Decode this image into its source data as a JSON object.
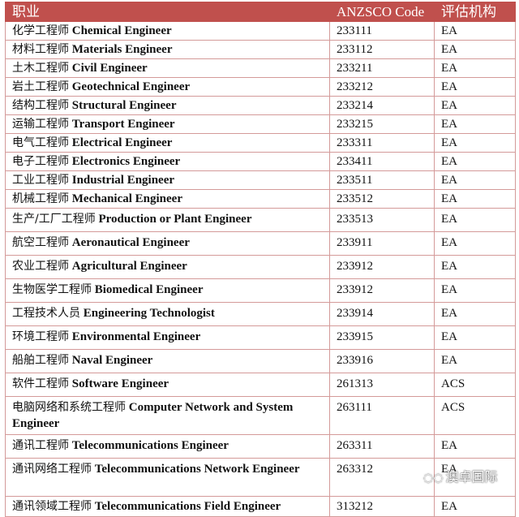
{
  "header": {
    "job": "职业",
    "code": "ANZSCO Code",
    "org": "评估机构"
  },
  "rows": [
    {
      "zh": "化学工程师",
      "en": "Chemical Engineer",
      "code": "233111",
      "org": "EA"
    },
    {
      "zh": "材料工程师",
      "en": "Materials Engineer",
      "code": "233112",
      "org": "EA"
    },
    {
      "zh": "土木工程师",
      "en": "Civil Engineer",
      "code": "233211",
      "org": "EA"
    },
    {
      "zh": "岩土工程师",
      "en": "Geotechnical Engineer",
      "code": "233212",
      "org": "EA"
    },
    {
      "zh": "结构工程师",
      "en": "Structural Engineer",
      "code": "233214",
      "org": "EA"
    },
    {
      "zh": "运输工程师",
      "en": "Transport Engineer",
      "code": "233215",
      "org": "EA"
    },
    {
      "zh": "电气工程师",
      "en": "Electrical Engineer",
      "code": "233311",
      "org": "EA"
    },
    {
      "zh": "电子工程师",
      "en": "Electronics Engineer",
      "code": "233411",
      "org": "EA"
    },
    {
      "zh": "工业工程师",
      "en": "Industrial Engineer",
      "code": "233511",
      "org": "EA"
    },
    {
      "zh": "机械工程师",
      "en": "Mechanical Engineer",
      "code": "233512",
      "org": "EA"
    },
    {
      "zh": "生产/工厂工程师",
      "en": "Production or Plant Engineer",
      "code": "233513",
      "org": "EA"
    },
    {
      "zh": "航空工程师",
      "en": "Aeronautical Engineer",
      "code": "233911",
      "org": "EA"
    },
    {
      "zh": "农业工程师",
      "en": "Agricultural Engineer",
      "code": "233912",
      "org": "EA"
    },
    {
      "zh": "生物医学工程师",
      "en": "Biomedical Engineer",
      "code": "233912",
      "org": "EA"
    },
    {
      "zh": "工程技术人员",
      "en": "Engineering Technologist",
      "code": "233914",
      "org": "EA"
    },
    {
      "zh": "环境工程师",
      "en": "Environmental Engineer",
      "code": "233915",
      "org": "EA"
    },
    {
      "zh": "船舶工程师",
      "en": "Naval Engineer",
      "code": "233916",
      "org": "EA"
    },
    {
      "zh": "软件工程师",
      "en": "Software Engineer",
      "code": "261313",
      "org": "ACS"
    },
    {
      "zh": "电脑网络和系统工程师",
      "en": "Computer Network and System Engineer",
      "code": "263111",
      "org": "ACS"
    },
    {
      "zh": "通讯工程师",
      "en": "Telecommunications Engineer",
      "code": "263311",
      "org": "EA"
    },
    {
      "zh": "通讯网络工程师",
      "en": "Telecommunications Network Engineer",
      "code": "263312",
      "org": "EA"
    },
    {
      "zh": "通讯领域工程师",
      "en": "Telecommunications Field Engineer",
      "code": "313212",
      "org": "EA"
    }
  ],
  "watermark": {
    "text": "澳卓国际",
    "icon": "wechat-icon"
  },
  "colors": {
    "header_bg": "#c0504d",
    "border": "#d49a99"
  }
}
